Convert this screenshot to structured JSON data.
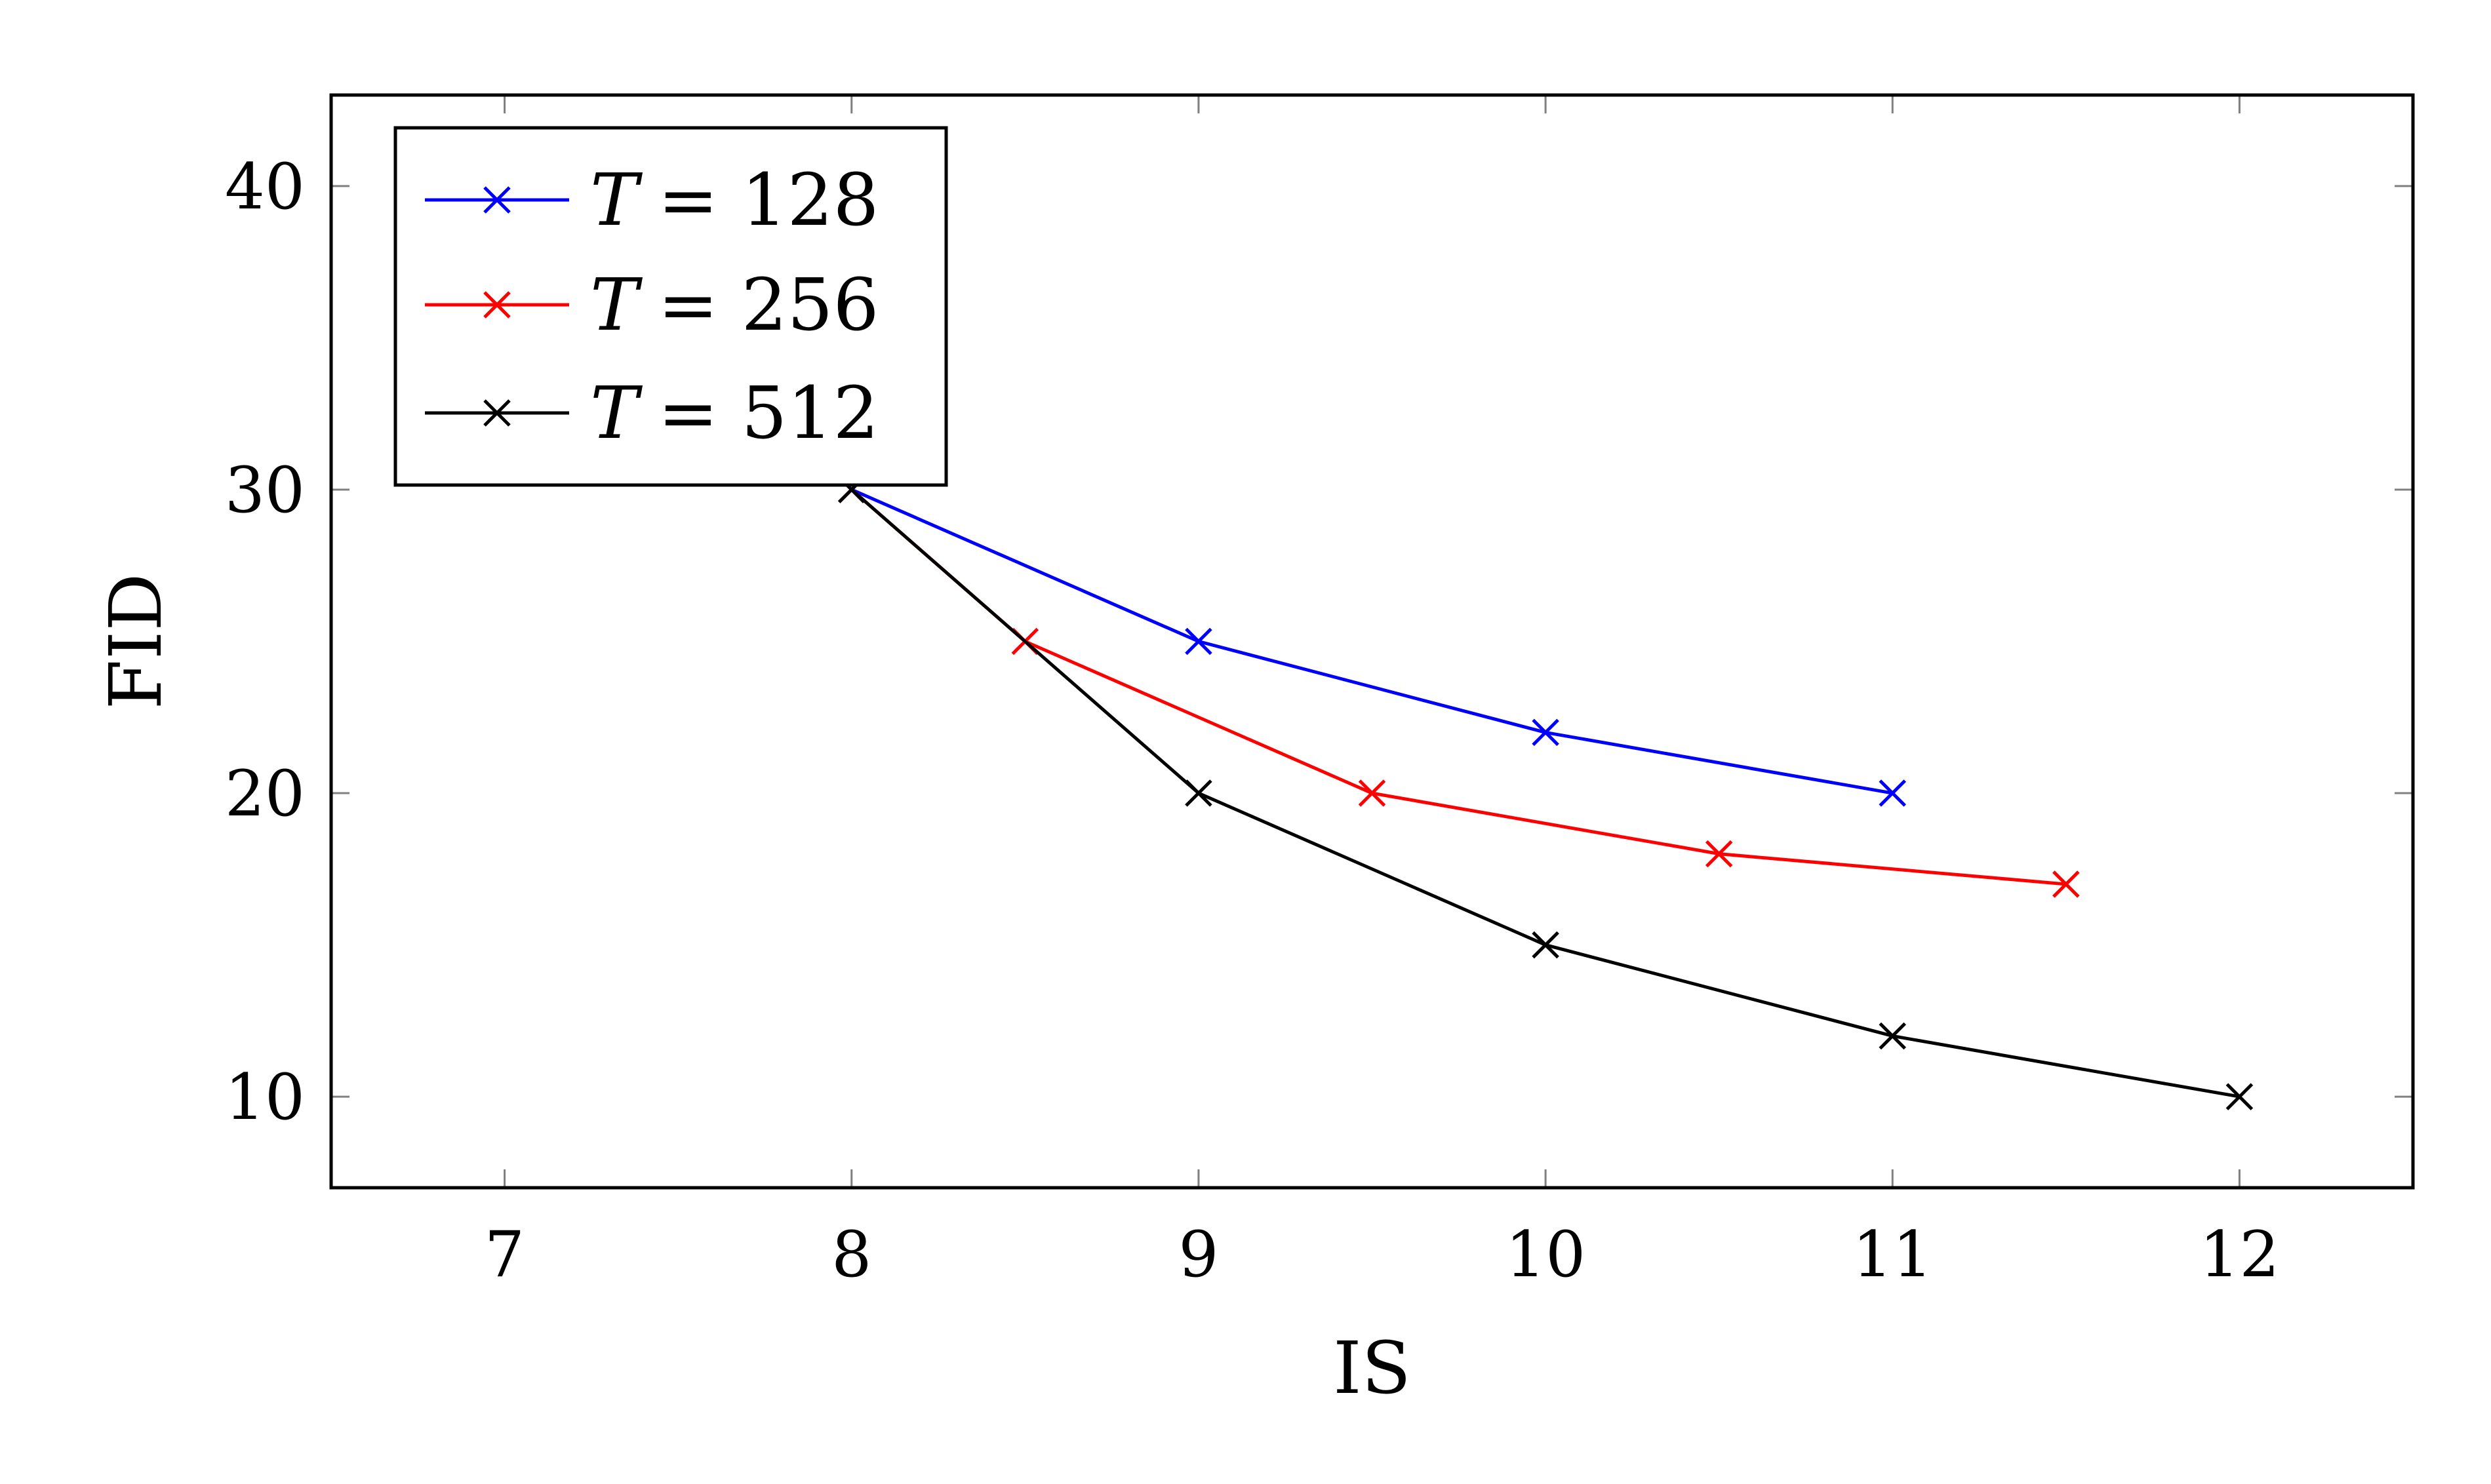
{
  "chart_data": {
    "type": "line",
    "title": "",
    "xlabel": "IS",
    "ylabel": "FID",
    "xlim": [
      6.5,
      12.5
    ],
    "ylim": [
      7,
      43
    ],
    "xticks": [
      "7",
      "8",
      "9",
      "10",
      "11",
      "12"
    ],
    "yticks": [
      "10",
      "20",
      "30",
      "40"
    ],
    "grid": false,
    "legend_position": "top-left",
    "series": [
      {
        "name_var": "T",
        "name_value": "= 128",
        "color": "#0000ff",
        "marker": "x",
        "x": [
          8,
          9,
          10,
          11
        ],
        "y": [
          30,
          25,
          22,
          20
        ]
      },
      {
        "name_var": "T",
        "name_value": "= 256",
        "color": "#ff0000",
        "marker": "x",
        "x": [
          8,
          8.5,
          9.5,
          10.5,
          11.5
        ],
        "y": [
          30,
          25,
          20,
          18,
          17
        ]
      },
      {
        "name_var": "T",
        "name_value": "= 512",
        "color": "#000000",
        "marker": "x",
        "x": [
          8,
          9,
          10,
          11,
          12
        ],
        "y": [
          30,
          20,
          15,
          12,
          10
        ]
      }
    ]
  }
}
